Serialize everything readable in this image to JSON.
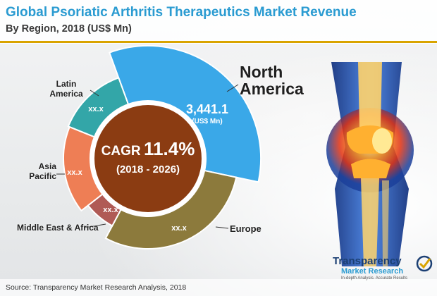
{
  "title": "Global Psoriatic Arthritis Therapeutics Market Revenue",
  "subtitle": "By Region, 2018 (US$ Mn)",
  "center": {
    "cagr_label": "CAGR",
    "cagr_value": "11.4%",
    "period": "(2018 - 2026)"
  },
  "chart_data": {
    "type": "pie",
    "title": "Global Psoriatic Arthritis Therapeutics Market Revenue",
    "subtitle": "By Region, 2018 (US$ Mn)",
    "unit": "US$ Mn",
    "categories": [
      "North America",
      "Europe",
      "Middle East & Africa",
      "Asia Pacific",
      "Latin America"
    ],
    "values": [
      3441.1,
      null,
      null,
      null,
      null
    ],
    "value_labels": [
      "3,441.1",
      "xx.x",
      "xx.x",
      "xx.x",
      "xx.x"
    ],
    "value_unit_label": "(US$ Mn)",
    "label_lines": [
      [
        "North",
        "America"
      ],
      [
        "Europe"
      ],
      [
        "Middle East & Africa"
      ],
      [
        "Asia",
        "Pacific"
      ],
      [
        "Latin",
        "America"
      ]
    ],
    "colors": [
      "#3aa8e8",
      "#8c7a3c",
      "#b05a55",
      "#ee7e55",
      "#33a6a8"
    ],
    "cagr": "11.4%",
    "cagr_period": "(2018 - 2026)"
  },
  "source": "Source: Transparency Market Research Analysis, 2018",
  "logo": {
    "name_line1": "Transparency",
    "name_line2": "Market Research",
    "tagline": "In-depth Analysis. Accurate Results"
  }
}
